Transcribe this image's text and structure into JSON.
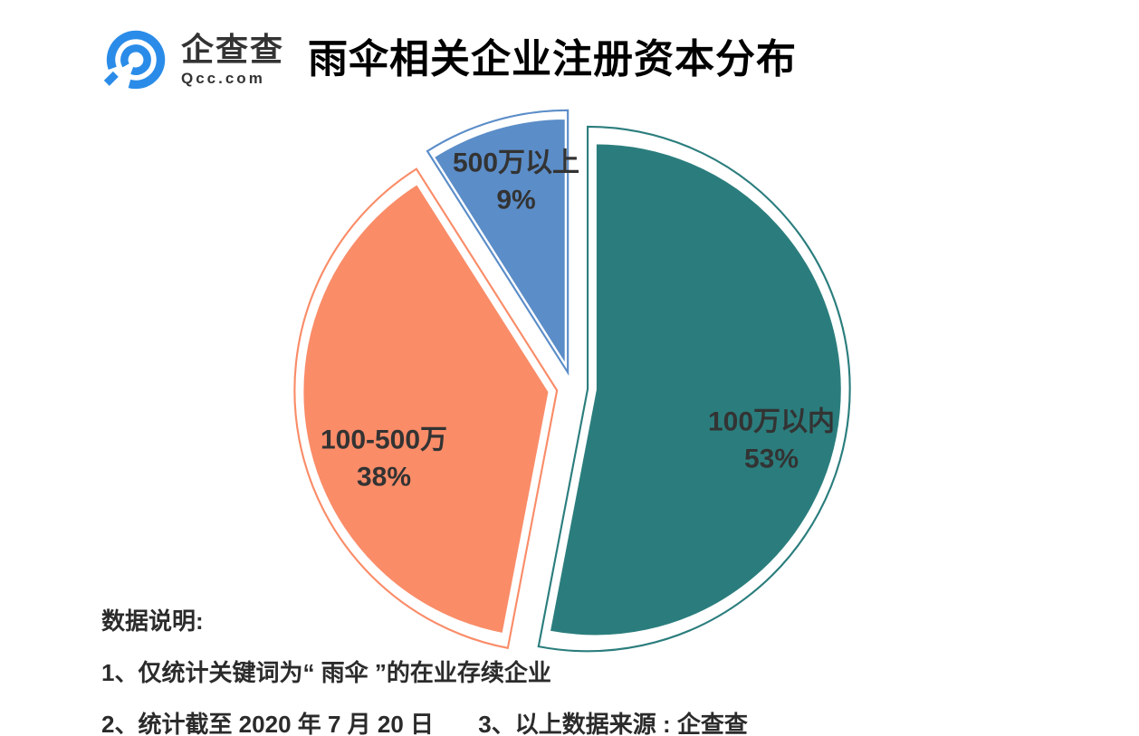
{
  "header": {
    "logo": {
      "brand_cn": "企查查",
      "brand_en": "Qcc.com",
      "icon": "qcc-logo-icon",
      "color": "#2a8ce8"
    },
    "title": "雨伞相关企业注册资本分布"
  },
  "chart_data": {
    "type": "pie",
    "title": "雨伞相关企业注册资本分布",
    "unit": "%",
    "slices": [
      {
        "label": "100万以内",
        "value": 53,
        "color": "#2b7d7d"
      },
      {
        "label": "100-500万",
        "value": 38,
        "color": "#fa8c68"
      },
      {
        "label": "500万以上",
        "value": 9,
        "color": "#5b8dc8"
      }
    ],
    "start_angle_deg": 0,
    "direction": "clockwise",
    "exploded": true,
    "label_position": "inside",
    "legend": "none",
    "background": "#ffffff",
    "label_color": "#333333"
  },
  "notes": {
    "heading": "数据说明:",
    "items": [
      "1、仅统计关键词为“ 雨伞 ”的在业存续企业",
      "2、统计截至 2020 年 7 月 20 日",
      "3、以上数据来源 : 企查查"
    ]
  }
}
